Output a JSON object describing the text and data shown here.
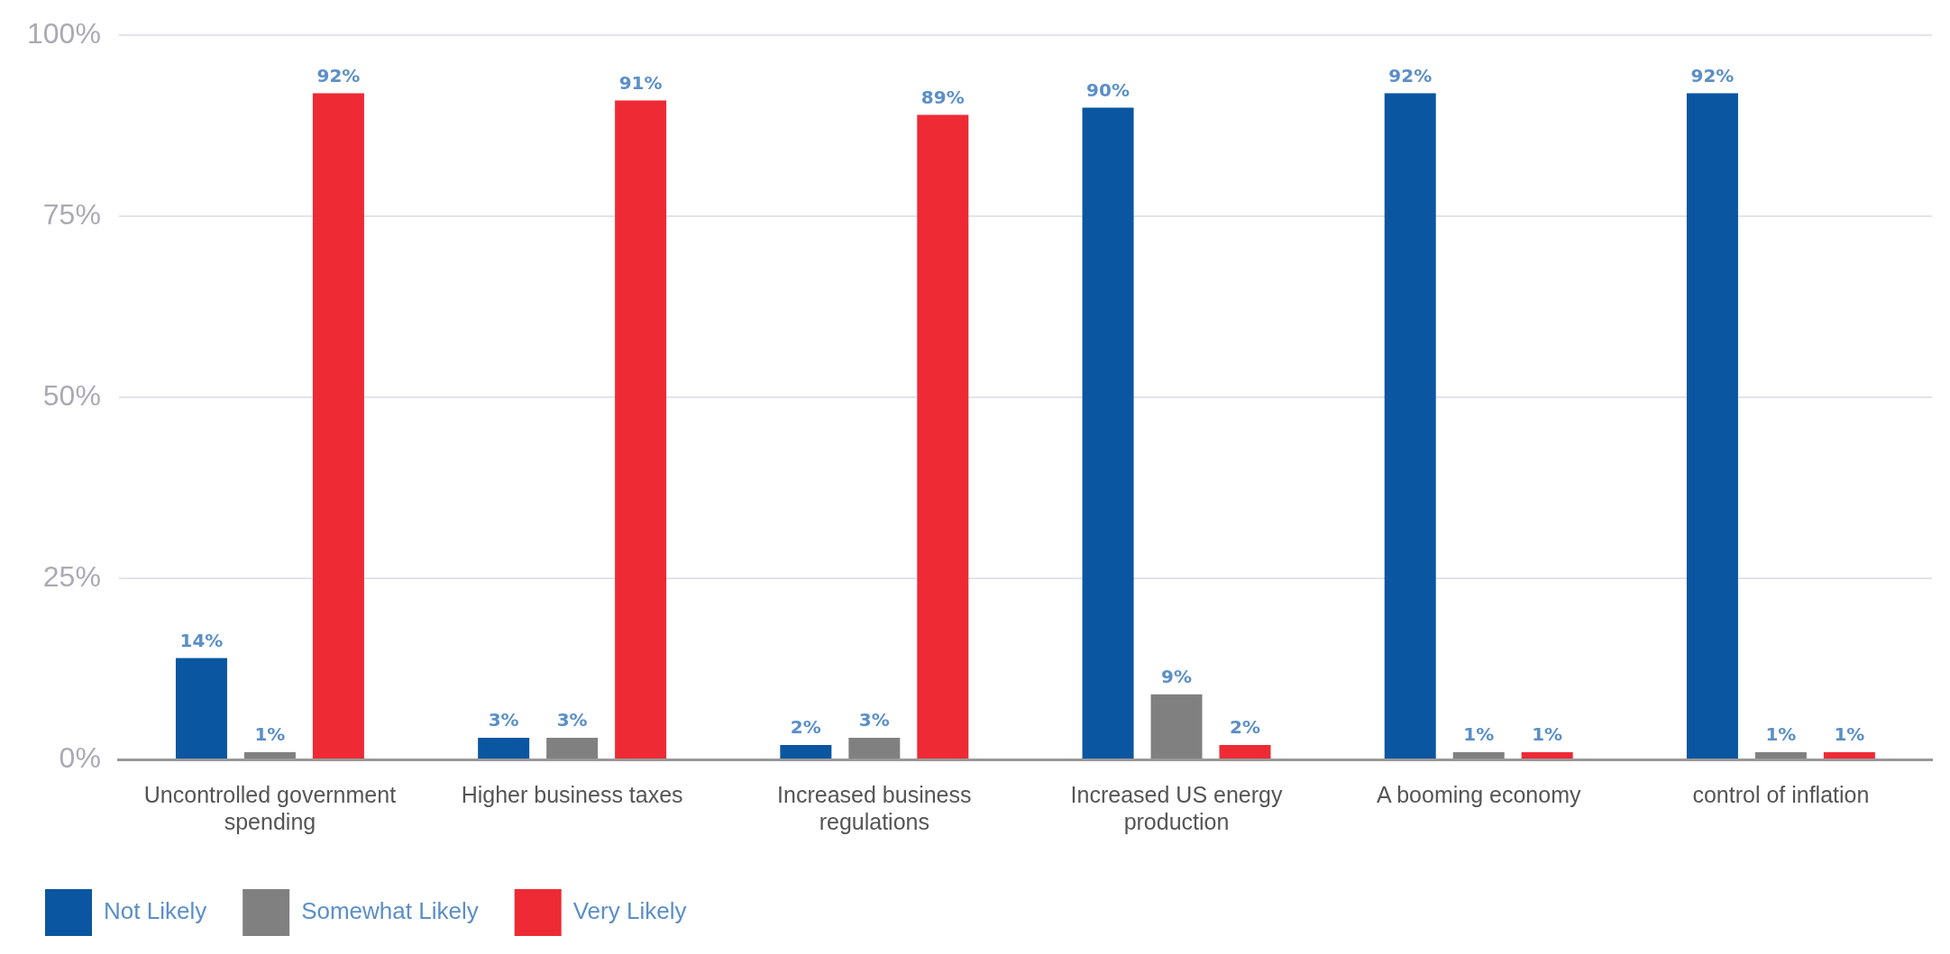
{
  "chart_data": {
    "type": "bar",
    "categories": [
      "Uncontrolled government spending",
      "Higher business taxes",
      "Increased business regulations",
      "Increased US energy production",
      "A booming economy",
      "control of inflation"
    ],
    "series": [
      {
        "name": "Not Likely",
        "color": "#0a56a0",
        "values": [
          14,
          3,
          2,
          90,
          92,
          92
        ],
        "value_labels": [
          "14%",
          "3%",
          "2%",
          "90%",
          "92%",
          "92%"
        ]
      },
      {
        "name": "Somewhat Likely",
        "color": "#808080",
        "values": [
          1,
          3,
          3,
          9,
          1,
          1
        ],
        "value_labels": [
          "1%",
          "3%",
          "3%",
          "9%",
          "1%",
          "1%"
        ]
      },
      {
        "name": "Very Likely",
        "color": "#ee2a35",
        "values": [
          92,
          91,
          89,
          2,
          1,
          1
        ],
        "value_labels": [
          "92%",
          "91%",
          "89%",
          "2%",
          "1%",
          "1%"
        ]
      }
    ],
    "ylim": [
      0,
      100
    ],
    "yticks": [
      {
        "value": 0,
        "label": "0%"
      },
      {
        "value": 25,
        "label": "25%"
      },
      {
        "value": 50,
        "label": "50%"
      },
      {
        "value": 75,
        "label": "75%"
      },
      {
        "value": 100,
        "label": "100%"
      }
    ],
    "grid": "y",
    "legend": "bottom left"
  }
}
